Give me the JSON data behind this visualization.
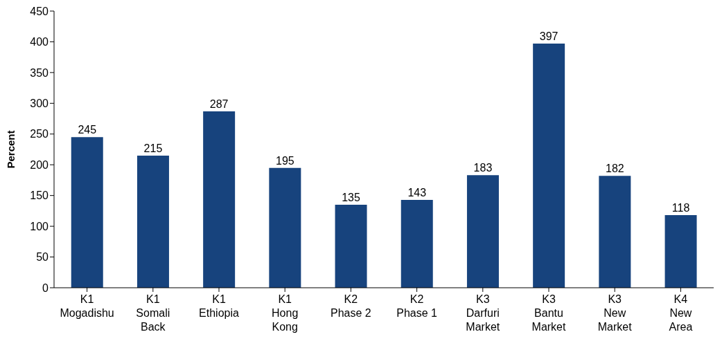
{
  "chart_data": {
    "type": "bar",
    "ylabel": "Percent",
    "categories": [
      "K1\nMogadishu",
      "K1\nSomali\nBack",
      "K1\nEthiopia",
      "K1\nHong\nKong",
      "K2\nPhase 2",
      "K2\nPhase 1",
      "K3\nDarfuri\nMarket",
      "K3\nBantu\nMarket",
      "K3\nNew\nMarket",
      "K4\nNew\nArea"
    ],
    "values": [
      245,
      215,
      287,
      195,
      135,
      143,
      183,
      397,
      182,
      118
    ],
    "color": "#17437d",
    "ylim": [
      0,
      450
    ],
    "yticks": [
      0,
      50,
      100,
      150,
      200,
      250,
      300,
      350,
      400,
      450
    ],
    "data_labels": true
  }
}
